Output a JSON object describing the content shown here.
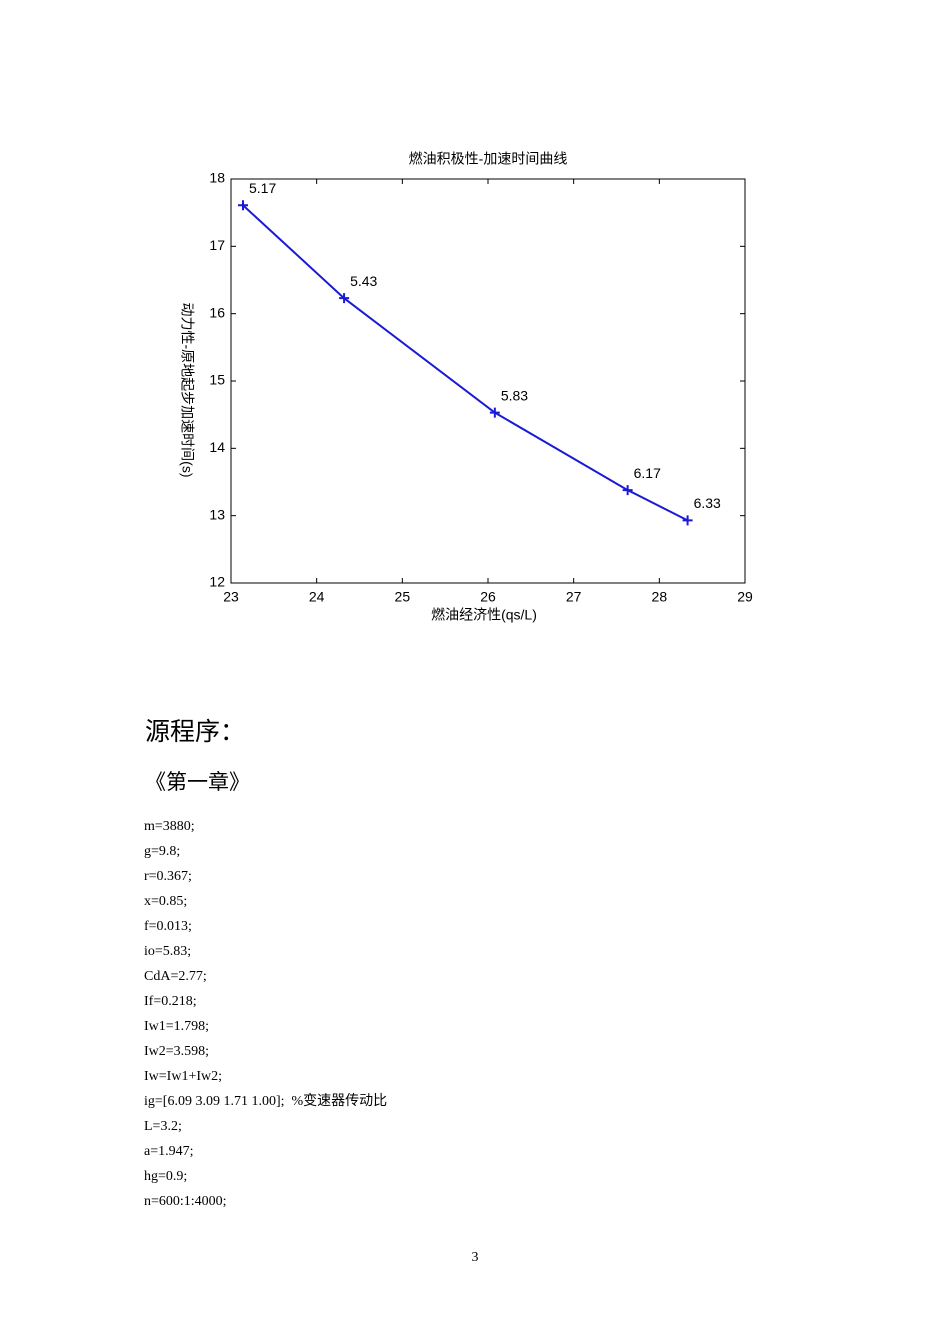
{
  "chart_data": {
    "type": "line",
    "title": "燃油积极性-加速时间曲线",
    "x_label": "燃油经济性(qs/L)",
    "y_label": "动力性-原地起步加速时间(s)",
    "x": [
      23.14,
      24.32,
      26.08,
      27.63,
      28.33
    ],
    "series": [
      {
        "color": "#1a1ad6",
        "marker": "+",
        "values": [
          17.61,
          16.23,
          14.53,
          13.38,
          12.93
        ]
      }
    ],
    "point_labels": [
      5.17,
      5.43,
      5.83,
      6.17,
      6.33
    ],
    "xlim": [
      23,
      29
    ],
    "xticks": [
      23,
      24,
      25,
      26,
      27,
      28,
      29
    ],
    "ylim": [
      12,
      18
    ],
    "yticks": [
      12,
      13,
      14,
      15,
      16,
      17,
      18
    ],
    "grid": false
  },
  "document": {
    "heading": "源程序：",
    "chapter": "《第一章》",
    "code_lines": [
      "m=3880;",
      "g=9.8;",
      "r=0.367;",
      "x=0.85;",
      "f=0.013;",
      "io=5.83;",
      "CdA=2.77;",
      "If=0.218;",
      "Iw1=1.798;",
      "Iw2=3.598;",
      "Iw=Iw1+Iw2;",
      "ig=[6.09 3.09 1.71 1.00];  %变速器传动比",
      "L=3.2;",
      "a=1.947;",
      "hg=0.9;",
      "n=600:1:4000;"
    ],
    "page_number": "3"
  }
}
